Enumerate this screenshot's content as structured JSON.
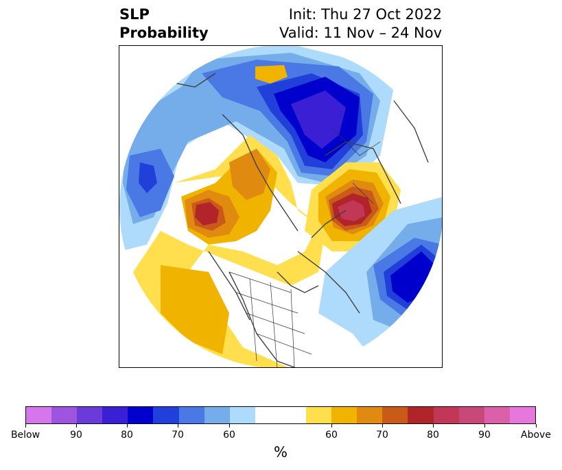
{
  "title": {
    "line1": "SLP",
    "line2": "Probability",
    "init": "Init: Thu 27 Oct 2022",
    "valid": "Valid: 11 Nov – 24 Nov"
  },
  "colorbar": {
    "unit": "%",
    "colors": [
      "#d577ea",
      "#9f54e0",
      "#6a3bd9",
      "#3a1fd5",
      "#0000cd",
      "#2140da",
      "#4a78e4",
      "#74ade9",
      "#aedafb",
      "#ffffff",
      "#ffdf4d",
      "#f0b400",
      "#e08a10",
      "#c95a18",
      "#b0242a",
      "#c23755",
      "#c9487a",
      "#dc5fa9",
      "#e678dc"
    ],
    "tick_labels": [
      "Below",
      "90",
      "80",
      "70",
      "60",
      "60",
      "70",
      "80",
      "90",
      "Above"
    ]
  },
  "map": {
    "projection": "north-polar-stereographic",
    "colors": {
      "light_blue": "#aedafb",
      "blue_60": "#74ade9",
      "blue_70": "#4a78e4",
      "blue_75": "#2140da",
      "blue_80": "#0000cd",
      "deep_blue": "#3a1fd5",
      "yellow_60": "#ffdf4d",
      "yellow_65": "#f0b400",
      "orange_70": "#e08a10",
      "orange_75": "#c95a18",
      "red_80": "#b0242a",
      "rose_85": "#c23755",
      "coast": "#404040",
      "border": "#333333"
    }
  }
}
